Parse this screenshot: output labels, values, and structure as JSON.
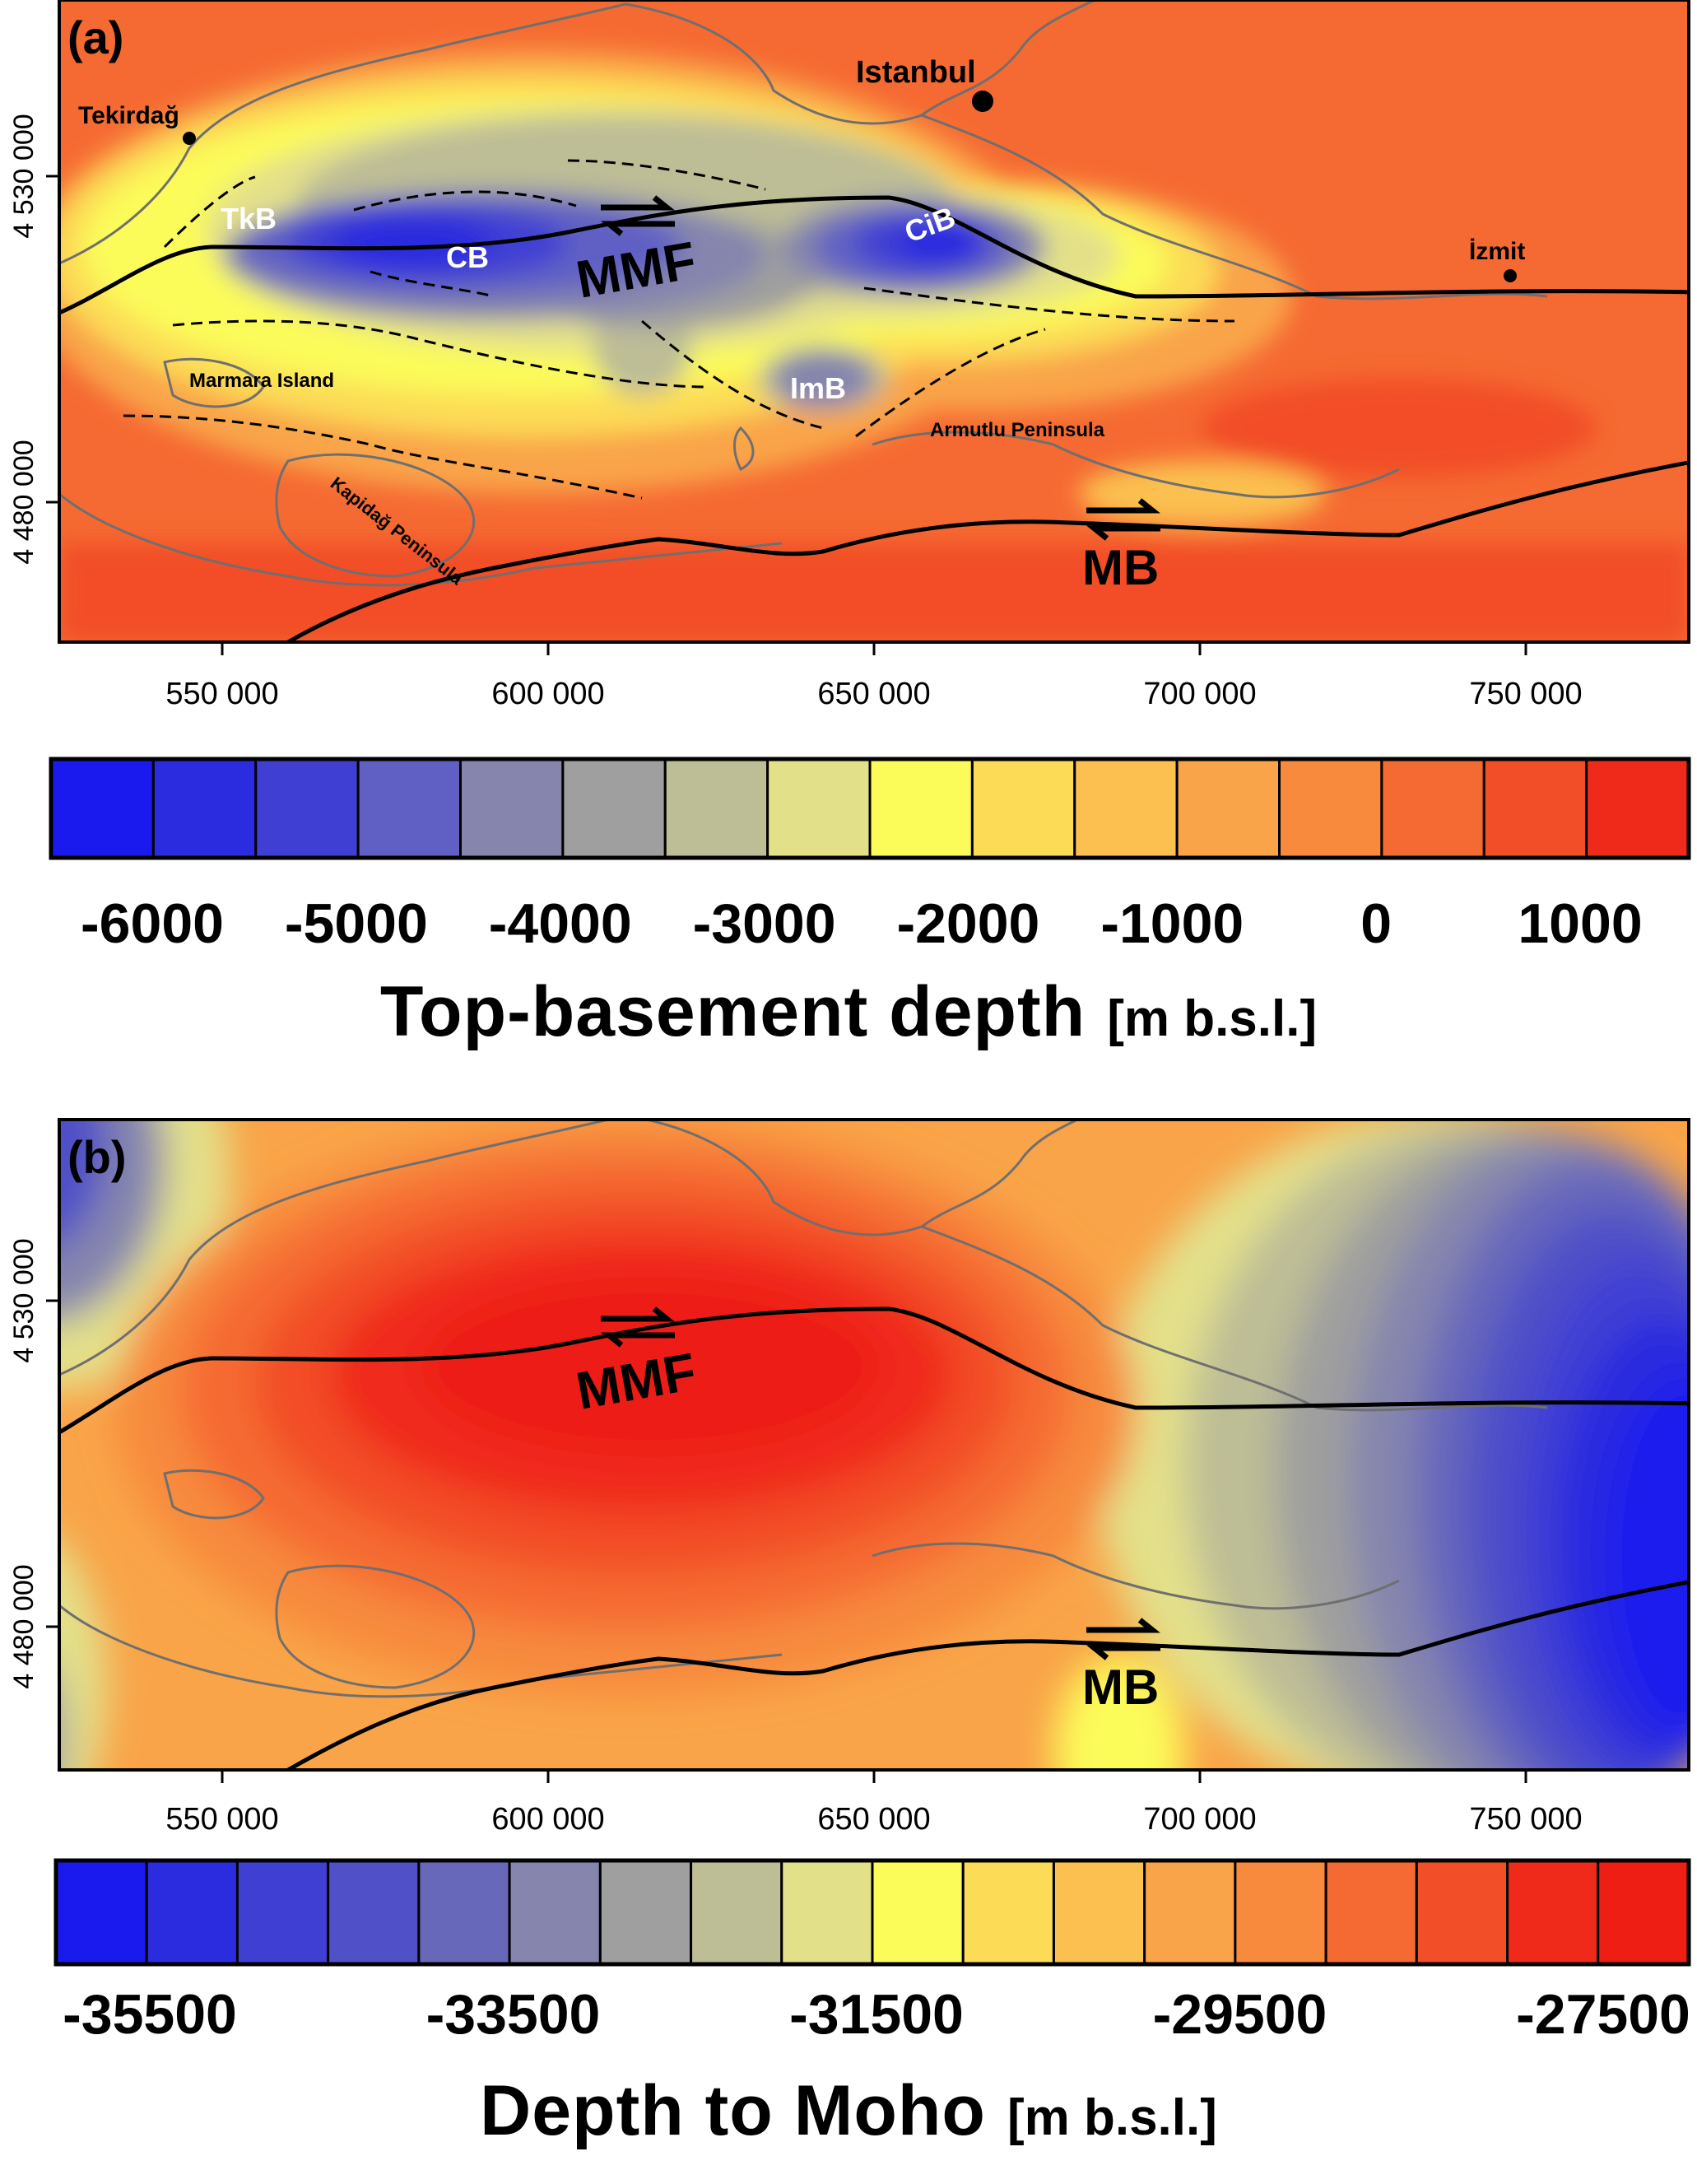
{
  "panels": [
    {
      "panel_label": "(a)",
      "x_ticks": [
        "550 000",
        "600 000",
        "650 000",
        "700 000",
        "750 000"
      ],
      "y_ticks": [
        "4 530 000",
        "4 480 000"
      ],
      "place_labels": [
        "Tekirdağ",
        "Istanbul",
        "İzmit",
        "Marmara Island",
        "Armutlu Peninsula",
        "Kapidağ Peninsula"
      ],
      "basin_labels": [
        "TkB",
        "CB",
        "CiB",
        "ImB"
      ],
      "fault_labels": [
        "MMF",
        "MB"
      ],
      "colorbar": {
        "colors": [
          "#1a1aee",
          "#2b2bdf",
          "#3f3fd4",
          "#6060c4",
          "#8585ae",
          "#9f9f9f",
          "#bdbd96",
          "#e3e08a",
          "#fbfb5a",
          "#fcdc57",
          "#fbc04f",
          "#f9a448",
          "#f78a3d",
          "#f56a32",
          "#f24e28",
          "#f02a1a"
        ],
        "tick_labels": [
          "-6000",
          "-5000",
          "-4000",
          "-3000",
          "-2000",
          "-1000",
          "0",
          "1000"
        ],
        "title": "Top-basement depth",
        "unit": "[m b.s.l.]"
      }
    },
    {
      "panel_label": "(b)",
      "x_ticks": [
        "550 000",
        "600 000",
        "650 000",
        "700 000",
        "750 000"
      ],
      "y_ticks": [
        "4 530 000",
        "4 480 000"
      ],
      "fault_labels": [
        "MMF",
        "MB"
      ],
      "colorbar": {
        "colors": [
          "#1a1aee",
          "#2b2bdf",
          "#3f3fd4",
          "#5050c8",
          "#6868bb",
          "#8585ae",
          "#9f9f9f",
          "#bdbd96",
          "#e3e08a",
          "#fbfb5a",
          "#fcdc57",
          "#fbc04f",
          "#f9a448",
          "#f78a3d",
          "#f56a32",
          "#f24e28",
          "#f02a1a",
          "#ee1e14"
        ],
        "tick_labels": [
          "-35500",
          "-33500",
          "-31500",
          "-29500",
          "-27500"
        ],
        "title": "Depth to Moho",
        "unit": "[m b.s.l.]"
      }
    }
  ]
}
